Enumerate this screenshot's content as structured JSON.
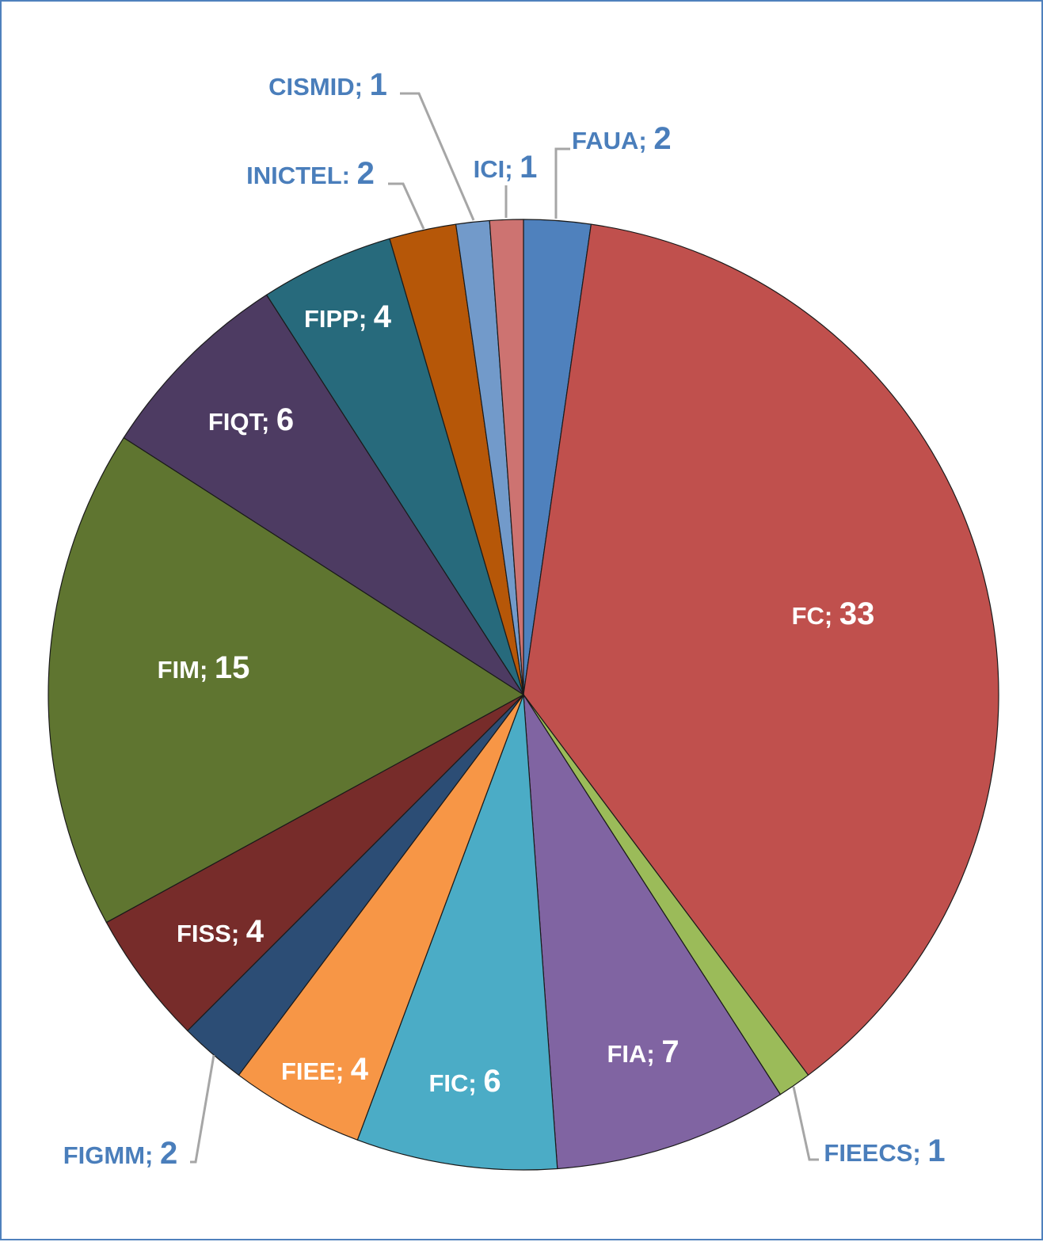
{
  "chart_data": {
    "type": "pie",
    "start_angle_deg": 0,
    "direction": "clockwise",
    "slice_border_color": "#1a1a1a",
    "leader_line_color": "#a6a6a6",
    "inside_label_color": "#ffffff",
    "outside_label_color": "#4a7ebb",
    "frame_color": "#4f81bd",
    "slices": [
      {
        "label": "FAUA",
        "separator": ";",
        "value": 2,
        "color": "#4f81bd",
        "label_position": "outside"
      },
      {
        "label": "FC",
        "separator": ";",
        "value": 33,
        "color": "#c0504d",
        "label_position": "inside"
      },
      {
        "label": "FIEECS",
        "separator": ";",
        "value": 1,
        "color": "#9bbb59",
        "label_position": "outside"
      },
      {
        "label": "FIA",
        "separator": ";",
        "value": 7,
        "color": "#8064a2",
        "label_position": "inside"
      },
      {
        "label": "FIC",
        "separator": ";",
        "value": 6,
        "color": "#4bacc6",
        "label_position": "inside"
      },
      {
        "label": "FIEE",
        "separator": ";",
        "value": 4,
        "color": "#f79646",
        "label_position": "inside"
      },
      {
        "label": "FIGMM",
        "separator": ";",
        "value": 2,
        "color": "#2c4d75",
        "label_position": "outside"
      },
      {
        "label": "FISS",
        "separator": ";",
        "value": 4,
        "color": "#772c2a",
        "label_position": "inside"
      },
      {
        "label": "FIM",
        "separator": ";",
        "value": 15,
        "color": "#5f7530",
        "label_position": "inside"
      },
      {
        "label": "FIQT",
        "separator": ";",
        "value": 6,
        "color": "#4d3b62",
        "label_position": "inside"
      },
      {
        "label": "FIPP",
        "separator": ";",
        "value": 4,
        "color": "#276a7c",
        "label_position": "inside"
      },
      {
        "label": "INICTEL",
        "separator": ":",
        "value": 2,
        "color": "#b65708",
        "label_position": "outside"
      },
      {
        "label": "CISMID",
        "separator": ";",
        "value": 1,
        "color": "#729aca",
        "label_position": "outside"
      },
      {
        "label": "ICI",
        "separator": ";",
        "value": 1,
        "color": "#cd7371",
        "label_position": "outside"
      }
    ]
  }
}
